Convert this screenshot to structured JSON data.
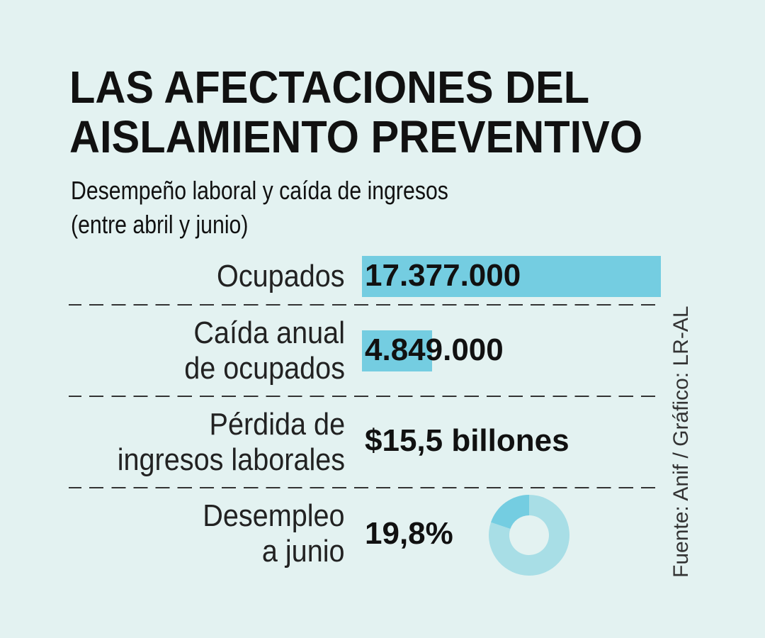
{
  "title_lines": [
    "LAS AFECTACIONES DEL",
    "AISLAMIENTO PREVENTIVO"
  ],
  "subtitle_lines": [
    "Desempeño laboral y caída de ingresos",
    "(entre abril y junio)"
  ],
  "source": "Fuente: Anif / Gráfico: LR-AL",
  "colors": {
    "background": "#E3F2F1",
    "bar": "#74CDE1",
    "donut_rest": "#A8DEE6"
  },
  "rows": [
    {
      "label_lines": [
        "Ocupados"
      ],
      "value_text": "17.377.000"
    },
    {
      "label_lines": [
        "Caída anual",
        "de ocupados"
      ],
      "value_text": "4.849.000"
    },
    {
      "label_lines": [
        "Pérdida de",
        "ingresos laborales"
      ],
      "value_text": "$15,5 billones"
    },
    {
      "label_lines": [
        "Desempleo",
        "a junio"
      ],
      "value_text": "19,8%"
    }
  ],
  "chart_data": {
    "type": "bar",
    "categories": [
      "Ocupados",
      "Caída anual de ocupados"
    ],
    "values": [
      17377000,
      4849000
    ],
    "extra": [
      {
        "type": "pie",
        "label": "Desempleo a junio",
        "values": [
          19.8,
          80.2
        ],
        "unit": "%"
      }
    ]
  }
}
